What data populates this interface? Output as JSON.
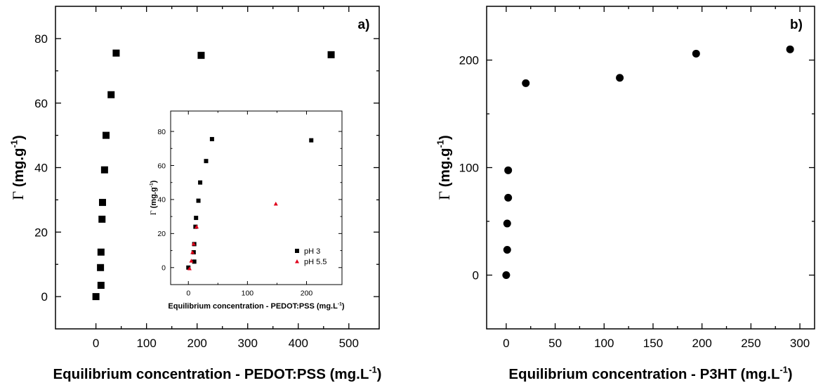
{
  "chart_data": [
    {
      "id": "a",
      "type": "scatter",
      "panel_label": "a)",
      "xlabel": "Equilibrium concentration - PEDOT:PSS (mg.L",
      "xlabel_sup": "-1",
      "xlabel_tail": ")",
      "ylabel_symbol": "Γ",
      "ylabel": "(mg.g",
      "ylabel_sup": "-1",
      "ylabel_tail": ")",
      "xlim": [
        -80,
        560
      ],
      "ylim": [
        -10,
        90
      ],
      "xticks": [
        0,
        100,
        200,
        300,
        400,
        500
      ],
      "yticks": [
        0,
        20,
        40,
        60,
        80
      ],
      "series": [
        {
          "marker": "square",
          "color": "#000000",
          "points": [
            [
              0,
              0
            ],
            [
              10,
              3.5
            ],
            [
              9,
              9
            ],
            [
              10,
              13.8
            ],
            [
              12,
              24
            ],
            [
              13,
              29.2
            ],
            [
              17,
              39.3
            ],
            [
              20,
              50
            ],
            [
              30,
              62.6
            ],
            [
              40,
              75.5
            ],
            [
              208,
              74.8
            ],
            [
              465,
              75
            ]
          ]
        }
      ],
      "inset": {
        "type": "scatter",
        "xlabel": "Equilibrium concentration - PEDOT:PSS (mg.L",
        "xlabel_sup": "-1",
        "xlabel_tail": ")",
        "ylabel_symbol": "Γ",
        "ylabel": "(mg.g",
        "ylabel_sup": "-1",
        "ylabel_tail": ")",
        "xlim": [
          -30,
          260
        ],
        "ylim": [
          -10,
          92
        ],
        "xticks": [
          0,
          100,
          200
        ],
        "yticks": [
          0,
          20,
          40,
          60,
          80
        ],
        "legend_position": "bottom-right",
        "series": [
          {
            "name": "pH 3",
            "marker": "square",
            "color": "#000000",
            "points": [
              [
                0,
                0
              ],
              [
                10,
                3.5
              ],
              [
                9,
                9
              ],
              [
                10,
                13.8
              ],
              [
                12,
                24
              ],
              [
                13,
                29.2
              ],
              [
                17,
                39.3
              ],
              [
                20,
                50
              ],
              [
                30,
                62.6
              ],
              [
                40,
                75.5
              ],
              [
                208,
                74.8
              ]
            ]
          },
          {
            "name": "pH 5.5",
            "marker": "triangle",
            "color": "#e0001b",
            "points": [
              [
                2,
                -0.5
              ],
              [
                5,
                4
              ],
              [
                7,
                9
              ],
              [
                9,
                14
              ],
              [
                14,
                24
              ],
              [
                148,
                37.5
              ]
            ]
          }
        ]
      }
    },
    {
      "id": "b",
      "type": "scatter",
      "panel_label": "b)",
      "xlabel": "Equilibrium concentration - P3HT (mg.L",
      "xlabel_sup": "-1",
      "xlabel_tail": ")",
      "ylabel_symbol": "Γ",
      "ylabel": "(mg.g",
      "ylabel_sup": "-1",
      "ylabel_tail": ")",
      "xlim": [
        -20,
        315
      ],
      "ylim": [
        -50,
        250
      ],
      "xticks": [
        0,
        50,
        100,
        150,
        200,
        250,
        300
      ],
      "yticks": [
        0,
        100,
        200
      ],
      "series": [
        {
          "marker": "circle",
          "color": "#000000",
          "points": [
            [
              0,
              0
            ],
            [
              1,
              23.5
            ],
            [
              1,
              48
            ],
            [
              2,
              72
            ],
            [
              2,
              97.5
            ],
            [
              20,
              178.5
            ],
            [
              116,
              183.5
            ],
            [
              194,
              206
            ],
            [
              290,
              210
            ]
          ]
        }
      ]
    }
  ]
}
